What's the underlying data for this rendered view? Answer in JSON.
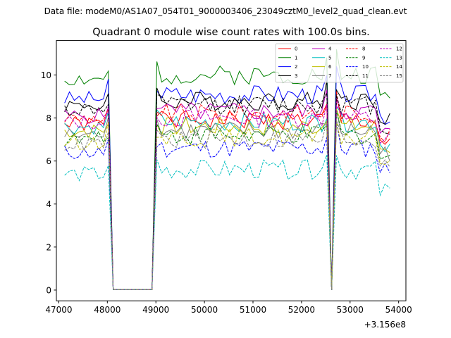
{
  "chart_data": {
    "type": "line",
    "suptitle": "Data file: modeM0/AS1A07_054T01_9000003406_23049cztM0_level2_quad_clean.evt",
    "title": "Quadrant 0 module wise count rates with 100.0s bins.",
    "xlabel": "",
    "ylabel": "",
    "offset_label": "+3.156e8",
    "xlim": [
      46950,
      54150
    ],
    "ylim": [
      -0.5,
      11.6
    ],
    "xticks": [
      47000,
      48000,
      49000,
      50000,
      51000,
      52000,
      53000,
      54000
    ],
    "xtick_labels": [
      "47000",
      "48000",
      "49000",
      "50000",
      "51000",
      "52000",
      "53000",
      "54000"
    ],
    "yticks": [
      0,
      2,
      4,
      6,
      8,
      10
    ],
    "ytick_labels": [
      "0",
      "2",
      "4",
      "6",
      "8",
      "10"
    ],
    "legend_location": "upper right",
    "segments": [
      {
        "start": 47120,
        "end": 48020,
        "step": 100
      },
      {
        "start": 48120,
        "end": 48920,
        "step": 100
      },
      {
        "start": 49020,
        "end": 52520,
        "step": 100
      },
      {
        "start": 52620,
        "end": 52620,
        "step": 100
      },
      {
        "start": 52720,
        "end": 53820,
        "step": 100
      }
    ],
    "series": [
      {
        "name": "0",
        "color": "#ff0000",
        "dash": "solid",
        "base": 7.9,
        "seed": 1
      },
      {
        "name": "1",
        "color": "#008000",
        "dash": "solid",
        "base": 10.0,
        "seed": 2
      },
      {
        "name": "2",
        "color": "#0000ff",
        "dash": "solid",
        "base": 9.1,
        "seed": 3
      },
      {
        "name": "3",
        "color": "#000000",
        "dash": "solid",
        "base": 8.8,
        "seed": 4
      },
      {
        "name": "4",
        "color": "#bf00bf",
        "dash": "solid",
        "base": 8.3,
        "seed": 5
      },
      {
        "name": "5",
        "color": "#00bfbf",
        "dash": "solid",
        "base": 7.8,
        "seed": 6
      },
      {
        "name": "6",
        "color": "#bfbf00",
        "dash": "solid",
        "base": 7.6,
        "seed": 7
      },
      {
        "name": "7",
        "color": "#808080",
        "dash": "solid",
        "base": 7.4,
        "seed": 8
      },
      {
        "name": "8",
        "color": "#ff0000",
        "dash": "dashed",
        "base": 8.2,
        "seed": 9
      },
      {
        "name": "9",
        "color": "#008000",
        "dash": "dashed",
        "base": 7.2,
        "seed": 10
      },
      {
        "name": "10",
        "color": "#0000ff",
        "dash": "dashed",
        "base": 6.6,
        "seed": 11
      },
      {
        "name": "11",
        "color": "#000000",
        "dash": "dashed",
        "base": 8.6,
        "seed": 12
      },
      {
        "name": "12",
        "color": "#bf00bf",
        "dash": "dashed",
        "base": 8.0,
        "seed": 13
      },
      {
        "name": "13",
        "color": "#00bfbf",
        "dash": "dashed",
        "base": 5.6,
        "seed": 14
      },
      {
        "name": "14",
        "color": "#bfbf00",
        "dash": "dashed",
        "base": 7.1,
        "seed": 15
      },
      {
        "name": "15",
        "color": "#808080",
        "dash": "dashed",
        "base": 7.0,
        "seed": 16
      }
    ]
  }
}
